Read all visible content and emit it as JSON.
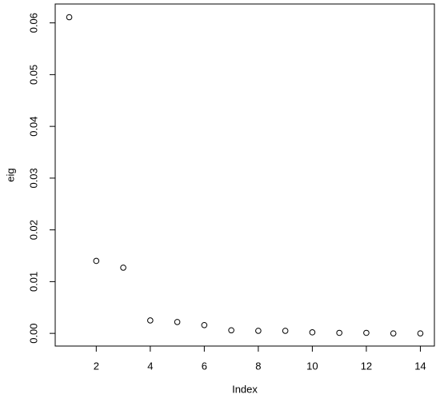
{
  "chart_data": {
    "type": "scatter",
    "x_label": "Index",
    "y_label": "eig",
    "x": [
      1,
      2,
      3,
      4,
      5,
      6,
      7,
      8,
      9,
      10,
      11,
      12,
      13,
      14
    ],
    "values": [
      0.0611,
      0.014,
      0.0127,
      0.0025,
      0.0022,
      0.0016,
      0.0006,
      0.0005,
      0.0005,
      0.0002,
      0.0001,
      0.0001,
      0,
      0
    ],
    "color": "#000000",
    "xlim": [
      0.48,
      14.52
    ],
    "xticks": [
      2,
      4,
      6,
      8,
      10,
      12,
      14
    ],
    "ylim": [
      -0.00245,
      0.06365
    ],
    "yticks": [
      {
        "value": 0,
        "label": "0.00"
      },
      0.01,
      0.02,
      0.03,
      0.04,
      0.05,
      0.06
    ]
  }
}
